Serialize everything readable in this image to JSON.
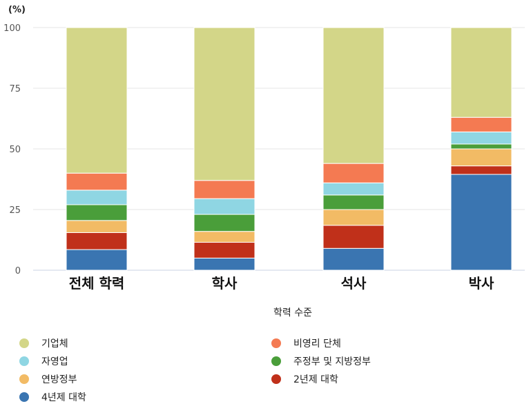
{
  "chart_data": {
    "type": "bar",
    "stacked": true,
    "unit_label": "(%)",
    "xlabel": "학력 수준",
    "ylabel": "",
    "ylim": [
      0,
      100
    ],
    "yticks": [
      0,
      25,
      50,
      75,
      100
    ],
    "grid": true,
    "legend_position": "bottom",
    "categories": [
      "전체 학력",
      "학사",
      "석사",
      "박사"
    ],
    "series": [
      {
        "name": "4년제 대학",
        "color": "#3a75b1",
        "values": [
          8.5,
          5,
          9,
          39.5
        ]
      },
      {
        "name": "2년제 대학",
        "color": "#c0301a",
        "values": [
          7,
          6.5,
          9.5,
          3.5
        ]
      },
      {
        "name": "연방정부",
        "color": "#f2bb65",
        "values": [
          5,
          4.5,
          6.5,
          7
        ]
      },
      {
        "name": "주정부 및 지방정부",
        "color": "#4a9e3a",
        "values": [
          6.5,
          7,
          6,
          2
        ]
      },
      {
        "name": "자영업",
        "color": "#8fd6e3",
        "values": [
          6,
          6.5,
          5,
          5
        ]
      },
      {
        "name": "비영리 단체",
        "color": "#f47a52",
        "values": [
          7,
          7.5,
          8,
          6
        ]
      },
      {
        "name": "기업체",
        "color": "#d3d688",
        "values": [
          60,
          63,
          56,
          37
        ]
      }
    ]
  }
}
